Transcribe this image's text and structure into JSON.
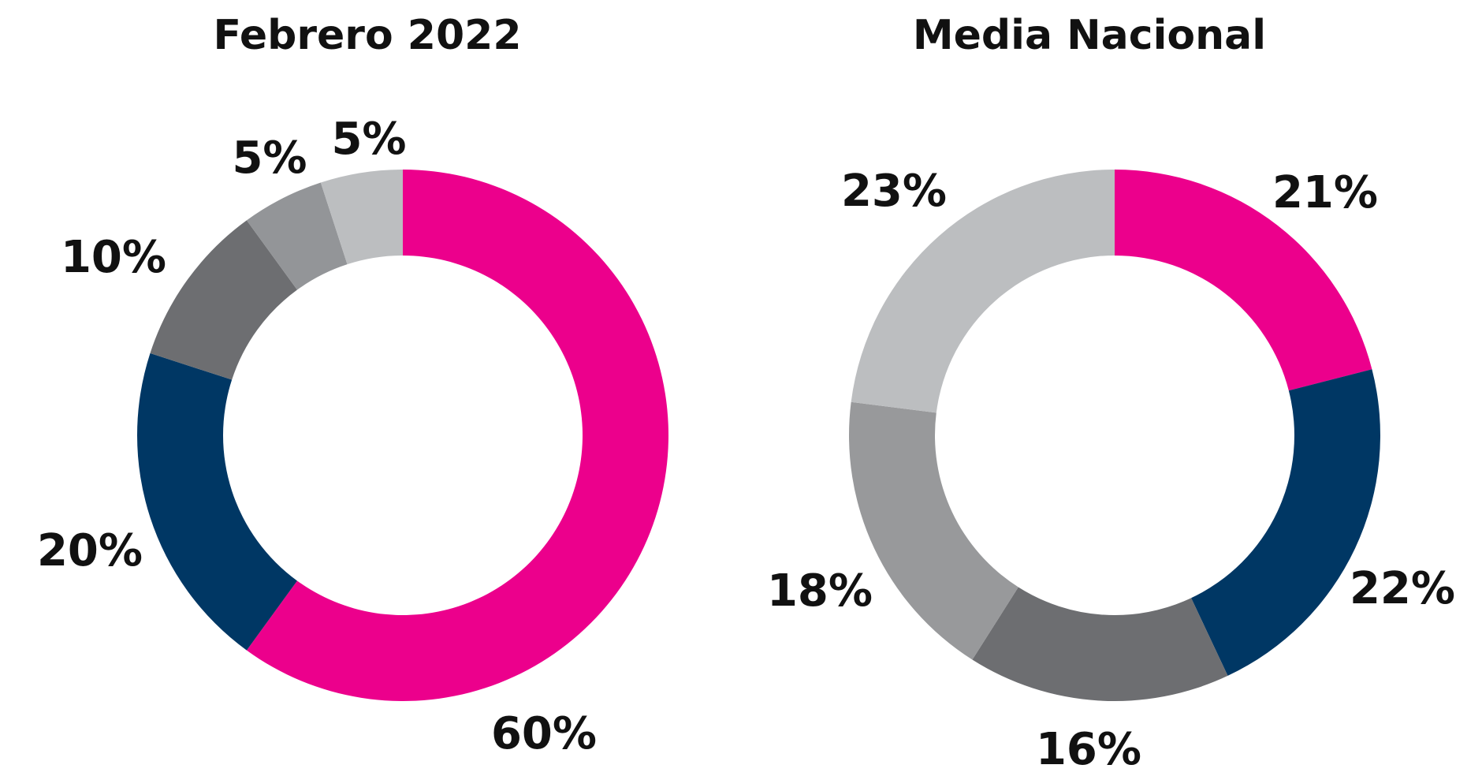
{
  "chart_data": [
    {
      "type": "pie",
      "title": "Febrero 2022",
      "values": [
        60,
        20,
        10,
        5,
        5
      ],
      "value_labels": [
        "60%",
        "20%",
        "10%",
        "5%",
        "5%"
      ],
      "colors": [
        "#ec008c",
        "#003764",
        "#6d6e71",
        "#939598",
        "#bcbec0"
      ]
    },
    {
      "type": "pie",
      "title": "Media Nacional",
      "values": [
        21,
        22,
        16,
        18,
        23
      ],
      "value_labels": [
        "21%",
        "22%",
        "16%",
        "18%",
        "23%"
      ],
      "colors": [
        "#ec008c",
        "#003764",
        "#6d6e71",
        "#98999b",
        "#bcbec0"
      ]
    }
  ]
}
